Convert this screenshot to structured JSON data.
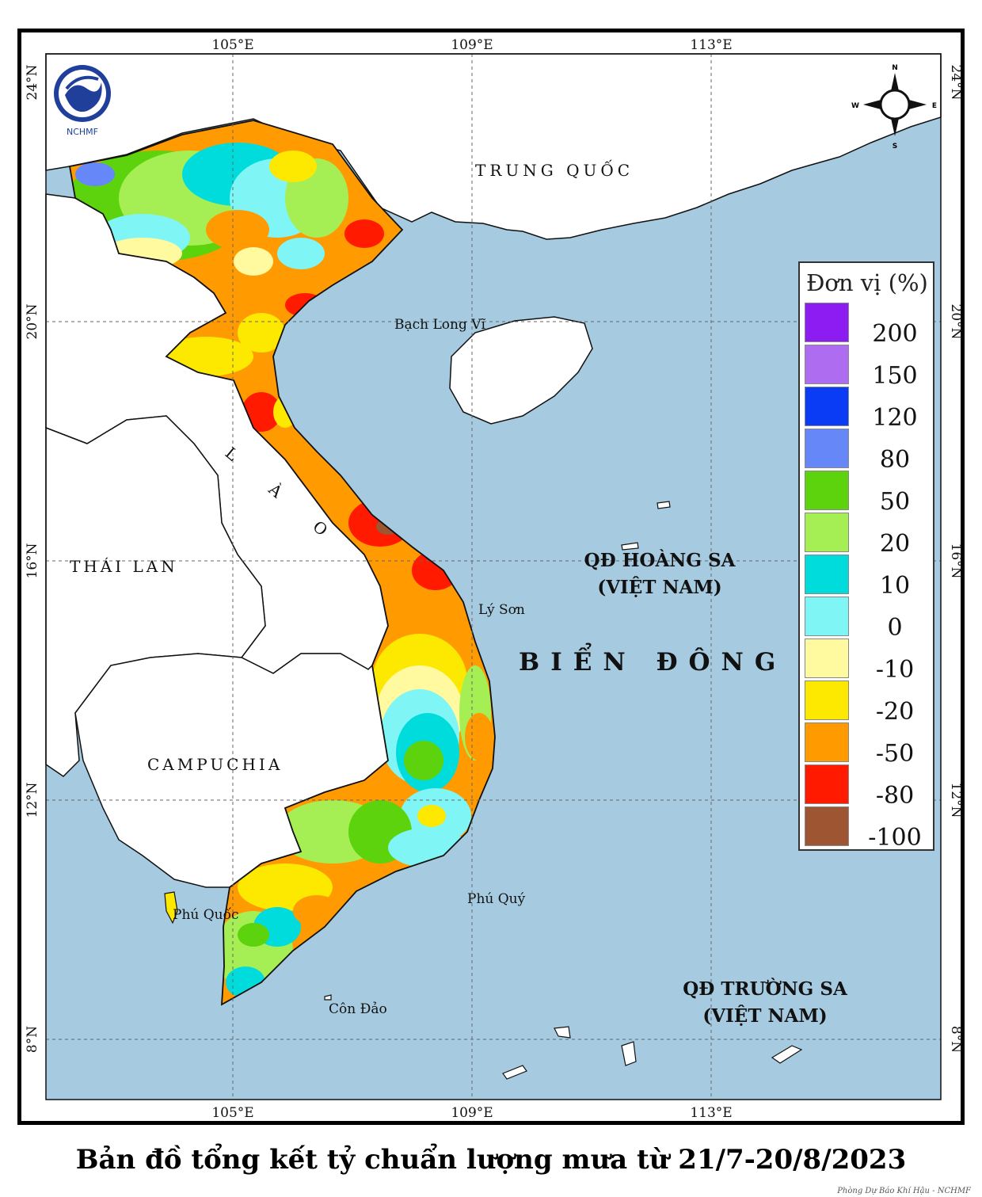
{
  "map": {
    "lon_ticks": [
      "105°E",
      "109°E",
      "113°E"
    ],
    "lat_ticks": [
      "24°N",
      "20°N",
      "16°N",
      "12°N",
      "8°N"
    ],
    "places": {
      "china": "TRUNG QUỐC",
      "laos": "L À O",
      "thailand": "THÁI LAN",
      "cambodia": "CAMPUCHIA",
      "sea": "BIỂN ĐÔNG",
      "bach_long_vi": "Bạch Long Vĩ",
      "ly_son": "Lý Sơn",
      "phu_quy": "Phú Quý",
      "phu_quoc": "Phú Quốc",
      "con_dao": "Côn Đảo",
      "hoang_sa_1": "QĐ HOÀNG SA",
      "hoang_sa_2": "(VIỆT NAM)",
      "truong_sa_1": "QĐ TRƯỜNG SA",
      "truong_sa_2": "(VIỆT NAM)"
    },
    "compass": {
      "n": "N",
      "s": "S",
      "e": "E",
      "w": "W"
    },
    "logo_text": "NCHMF",
    "colors": {
      "sea": "#a6cbe0",
      "land_foreign": "#ffffff"
    }
  },
  "legend": {
    "title": "Đơn vị (%)",
    "items": [
      {
        "label": "200",
        "color": "#8c1cf2"
      },
      {
        "label": "150",
        "color": "#ae6cf0"
      },
      {
        "label": "120",
        "color": "#0b3cf5"
      },
      {
        "label": "80",
        "color": "#6687f7"
      },
      {
        "label": "50",
        "color": "#5cd30c"
      },
      {
        "label": "20",
        "color": "#a5ef55"
      },
      {
        "label": "10",
        "color": "#00dcdc"
      },
      {
        "label": "0",
        "color": "#7ff5f5"
      },
      {
        "label": "-10",
        "color": "#fff9a0"
      },
      {
        "label": "-20",
        "color": "#fde800"
      },
      {
        "label": "-50",
        "color": "#ff9a00"
      },
      {
        "label": "-80",
        "color": "#ff1a00"
      },
      {
        "label": "-100",
        "color": "#9d5532"
      }
    ]
  },
  "caption": "Bản đồ tổng kết tỷ chuẩn lượng mưa từ 21/7-20/8/2023",
  "credit": "Phòng Dự Báo Khí Hậu - NCHMF"
}
